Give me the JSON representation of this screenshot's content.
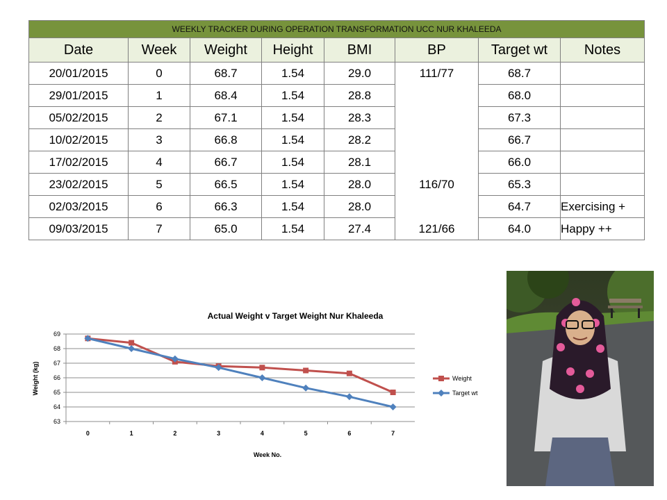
{
  "table": {
    "title": "WEEKLY TRACKER DURING OPERATION TRANSFORMATION UCC NUR KHALEEDA",
    "headers": [
      "Date",
      "Week",
      "Weight",
      "Height",
      "BMI",
      "BP",
      "Target wt",
      "Notes"
    ],
    "rows": [
      [
        "20/01/2015",
        "0",
        "68.7",
        "1.54",
        "29.0",
        "111/77",
        "68.7",
        ""
      ],
      [
        "29/01/2015",
        "1",
        "68.4",
        "1.54",
        "28.8",
        "",
        "68.0",
        ""
      ],
      [
        "05/02/2015",
        "2",
        "67.1",
        "1.54",
        "28.3",
        "",
        "67.3",
        ""
      ],
      [
        "10/02/2015",
        "3",
        "66.8",
        "1.54",
        "28.2",
        "",
        "66.7",
        ""
      ],
      [
        "17/02/2015",
        "4",
        "66.7",
        "1.54",
        "28.1",
        "",
        "66.0",
        ""
      ],
      [
        "23/02/2015",
        "5",
        "66.5",
        "1.54",
        "28.0",
        "116/70",
        "65.3",
        ""
      ],
      [
        "02/03/2015",
        "6",
        "66.3",
        "1.54",
        "28.0",
        "",
        "64.7",
        "Exercising +"
      ],
      [
        "09/03/2015",
        "7",
        "65.0",
        "1.54",
        "27.4",
        "121/66",
        "64.0",
        "Happy ++"
      ]
    ]
  },
  "chart_data": {
    "type": "line",
    "title": "Actual Weight v Target Weight Nur Khaleeda",
    "xlabel": "Week No.",
    "ylabel": "Weight (kg)",
    "x": [
      0,
      1,
      2,
      3,
      4,
      5,
      6,
      7
    ],
    "x_tick_labels": [
      "0",
      "1",
      "2",
      "3",
      "4",
      "5",
      "6",
      "7"
    ],
    "ylim": [
      63,
      69
    ],
    "y_ticks": [
      63,
      64,
      65,
      66,
      67,
      68,
      69
    ],
    "grid": "horizontal",
    "legend": "right",
    "series": [
      {
        "name": "Weight",
        "color": "#c0504d",
        "marker": "square",
        "values": [
          68.7,
          68.4,
          67.1,
          66.8,
          66.7,
          66.5,
          66.3,
          65.0
        ]
      },
      {
        "name": "Target wt",
        "color": "#4f81bd",
        "marker": "diamond",
        "values": [
          68.7,
          68.0,
          67.3,
          66.7,
          66.0,
          65.3,
          64.7,
          64.0
        ]
      }
    ]
  },
  "colors": {
    "title_bar": "#77933c",
    "header_bg": "#ebf1de",
    "grid": "#8c8c8c"
  }
}
